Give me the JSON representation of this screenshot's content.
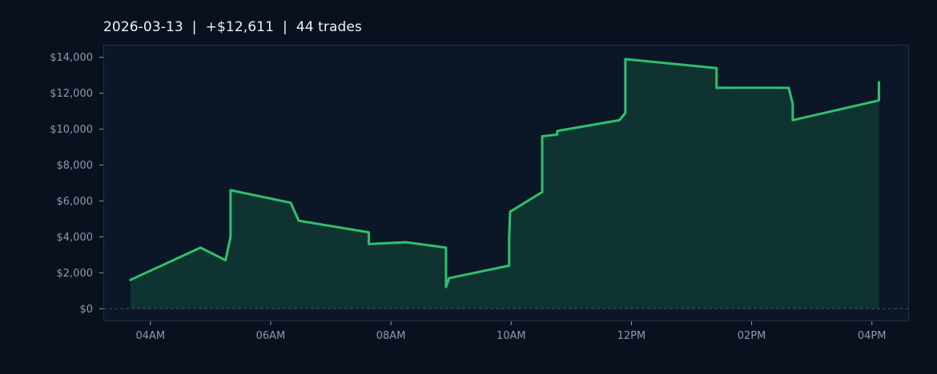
{
  "title": "2026-03-13  |  +$12,611  |  44 trades",
  "chart_data": {
    "type": "area",
    "title": "2026-03-13  |  +$12,611  |  44 trades",
    "xlabel": "",
    "ylabel": "",
    "x_ticks": [
      "04AM",
      "06AM",
      "08AM",
      "10AM",
      "12PM",
      "02PM",
      "04PM"
    ],
    "y_ticks": [
      "$0",
      "$2,000",
      "$4,000",
      "$6,000",
      "$8,000",
      "$10,000",
      "$12,000",
      "$14,000"
    ],
    "ylim": [
      -700,
      14700
    ],
    "xlim": [
      "03:13",
      "16:37"
    ],
    "grid": false,
    "zero_line": true,
    "colors": {
      "line": "#2ec16c",
      "fill": "#0f3330",
      "plot_bg": "#0b1626",
      "page_bg": "#08111d",
      "frame": "#1d3045",
      "tick_text": "#8e9aad",
      "zero_line": "#3d4d5e"
    },
    "series": [
      {
        "points": [
          [
            "03:40",
            1600
          ],
          [
            "04:50",
            3400
          ],
          [
            "05:15",
            2700
          ],
          [
            "05:20",
            4000
          ],
          [
            "05:20",
            5000
          ],
          [
            "05:20",
            6600
          ],
          [
            "06:20",
            5900
          ],
          [
            "06:28",
            4900
          ],
          [
            "07:38",
            4250
          ],
          [
            "07:38",
            3600
          ],
          [
            "08:15",
            3700
          ],
          [
            "08:55",
            3400
          ],
          [
            "08:55",
            1200
          ],
          [
            "08:58",
            1700
          ],
          [
            "09:58",
            2400
          ],
          [
            "09:58",
            4000
          ],
          [
            "09:59",
            5400
          ],
          [
            "10:31",
            6500
          ],
          [
            "10:31",
            9600
          ],
          [
            "10:46",
            9700
          ],
          [
            "10:46",
            9900
          ],
          [
            "11:48",
            10500
          ],
          [
            "11:54",
            10900
          ],
          [
            "11:54",
            13900
          ],
          [
            "13:25",
            13400
          ],
          [
            "13:25",
            12300
          ],
          [
            "14:37",
            12300
          ],
          [
            "14:41",
            11400
          ],
          [
            "14:41",
            10500
          ],
          [
            "16:07",
            11600
          ],
          [
            "16:07",
            12611
          ]
        ]
      }
    ]
  }
}
